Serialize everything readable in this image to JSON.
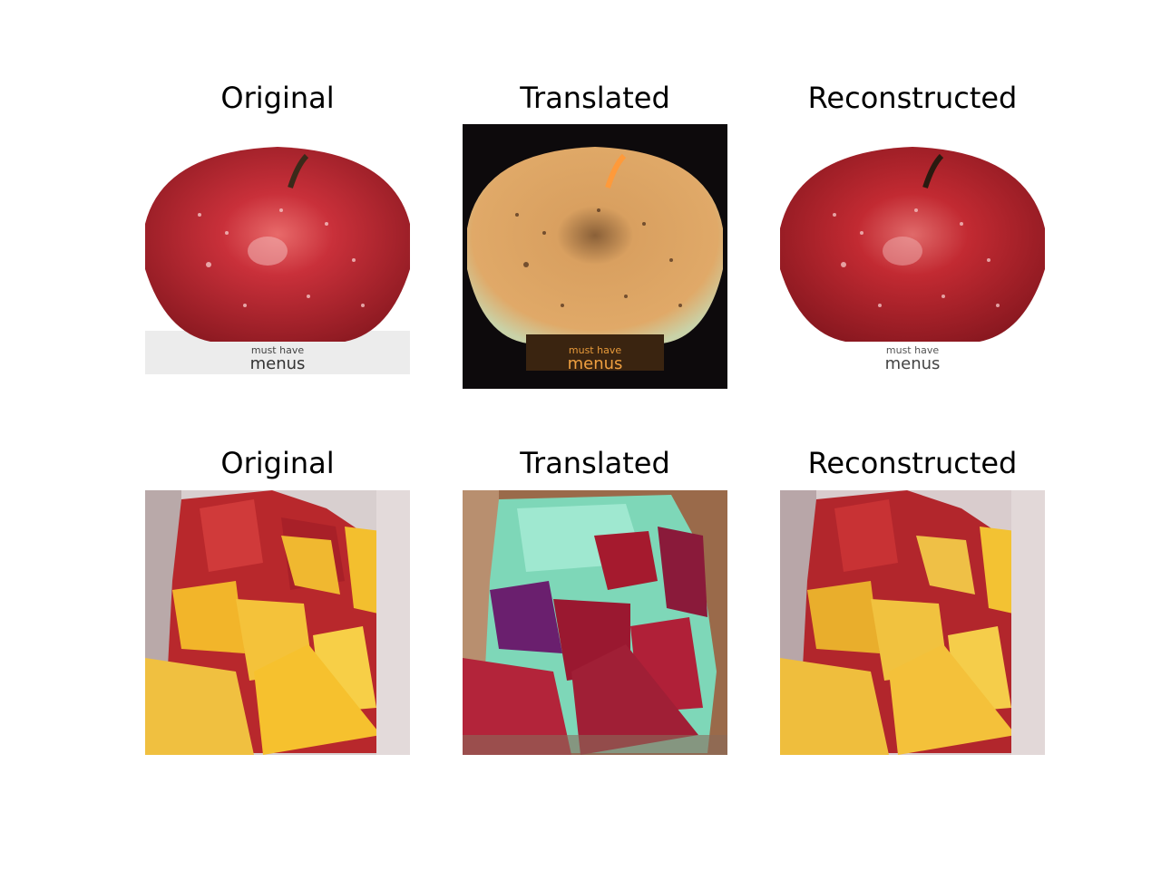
{
  "figure": {
    "rows": [
      {
        "panels": [
          {
            "title": "Original",
            "label_top": "must have",
            "label_bottom": "menus"
          },
          {
            "title": "Translated",
            "label_top": "must have",
            "label_bottom": "menus"
          },
          {
            "title": "Reconstructed",
            "label_top": "must have",
            "label_bottom": "menus"
          }
        ]
      },
      {
        "panels": [
          {
            "title": "Original"
          },
          {
            "title": "Translated"
          },
          {
            "title": "Reconstructed"
          }
        ]
      }
    ]
  },
  "colors": {
    "background": "#ffffff",
    "apple_red": "#c0272d",
    "orange_yellow": "#f2b52a",
    "translated_apple": "#d99a58",
    "translated_fruit_purple": "#6a1f6e",
    "translated_fruit_cyan": "#8fe0c8"
  }
}
